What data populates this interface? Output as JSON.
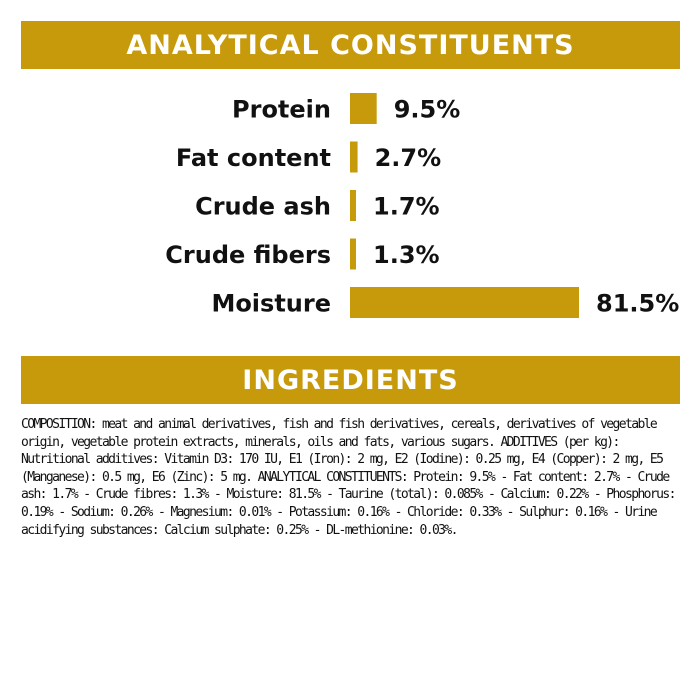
{
  "colors": {
    "accent": "#C79A0B",
    "text": "#111111",
    "background": "#FFFFFF"
  },
  "analytical": {
    "heading": "ANALYTICAL CONSTITUENTS"
  },
  "ingredients": {
    "heading": "INGREDIENTS",
    "text": "COMPOSITION: meat and animal derivatives, fish and fish derivatives, cereals, derivatives of vegetable origin, vegetable protein extracts, minerals, oils and fats, various sugars. ADDITIVES (per kg): Nutritional additives: Vitamin D3: 170 IU, E1 (Iron): 2 mg, E2 (Iodine): 0.25 mg, E4 (Copper): 2 mg, E5 (Manganese): 0.5 mg, E6 (Zinc): 5 mg. ANALYTICAL CONSTITUENTS: Protein: 9.5% - Fat content: 2.7% - Crude ash: 1.7% - Crude fibres: 1.3% - Moisture: 81.5% - Taurine (total): 0.085% - Calcium: 0.22% - Phosphorus: 0.19% - Sodium: 0.26% - Magnesium: 0.01% - Potassium: 0.16% - Chloride: 0.33% - Sulphur: 0.16% - Urine acidifying substances: Calcium sulphate: 0.25% - DL-methionine: 0.03%."
  },
  "chart_data": {
    "type": "bar",
    "orientation": "horizontal",
    "categories": [
      "Protein",
      "Fat content",
      "Crude ash",
      "Crude fibers",
      "Moisture"
    ],
    "values": [
      9.5,
      2.7,
      1.7,
      1.3,
      81.5
    ],
    "value_labels": [
      "9.5%",
      "2.7%",
      "1.7%",
      "1.3%",
      "81.5%"
    ],
    "xlim": [
      0,
      81.5
    ],
    "grid": false,
    "legend": "none"
  }
}
